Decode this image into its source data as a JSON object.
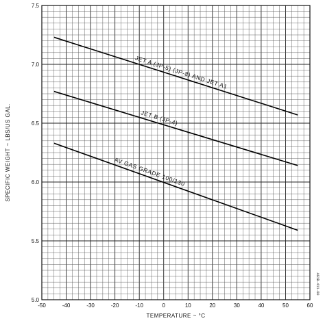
{
  "chart_data": {
    "type": "line",
    "title": "",
    "xlabel": "TEMPERATURE ~ °C",
    "ylabel": "SPECIFIC WEIGHT ~ LBS/US GAL.",
    "xlim": [
      -50,
      60
    ],
    "ylim": [
      5.0,
      7.5
    ],
    "x_ticks": [
      "-50",
      "-40",
      "-30",
      "-20",
      "-10",
      "0",
      "10",
      "20",
      "30",
      "40",
      "50",
      "60"
    ],
    "y_ticks": [
      "5.0",
      "5.5",
      "6.0",
      "6.5",
      "7.0",
      "7.5"
    ],
    "grid": true,
    "series": [
      {
        "name": "JET A (JP-5) (JP-8) AND JET A1",
        "x": [
          -45,
          55
        ],
        "y": [
          7.23,
          6.57
        ]
      },
      {
        "name": "JET B (JP-4)",
        "x": [
          -45,
          55
        ],
        "y": [
          6.77,
          6.14
        ]
      },
      {
        "name": "AV GAS GRADE 100/130",
        "x": [
          -45,
          55
        ],
        "y": [
          6.33,
          5.59
        ]
      }
    ],
    "annotation": "AG1B-411-00"
  }
}
